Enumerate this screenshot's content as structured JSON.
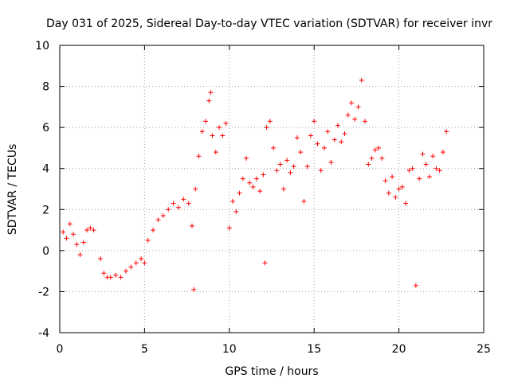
{
  "chart_data": {
    "type": "scatter",
    "title": "Day 031 of 2025, Sidereal Day-to-day VTEC variation (SDTVAR) for receiver invr",
    "xlabel": "GPS time / hours",
    "ylabel": "SDTVAR / TECUs",
    "xlim": [
      0,
      25
    ],
    "ylim": [
      -4,
      10
    ],
    "xticks": [
      0,
      5,
      10,
      15,
      20,
      25
    ],
    "yticks": [
      -4,
      -2,
      0,
      2,
      4,
      6,
      8,
      10
    ],
    "grid": true,
    "marker": "+",
    "color": "#ff0000",
    "series": [
      {
        "name": "SDTVAR",
        "points": [
          [
            0.2,
            0.9
          ],
          [
            0.4,
            0.6
          ],
          [
            0.6,
            1.3
          ],
          [
            0.8,
            0.8
          ],
          [
            1.0,
            0.3
          ],
          [
            1.2,
            -0.2
          ],
          [
            1.4,
            0.4
          ],
          [
            1.6,
            1.0
          ],
          [
            1.8,
            1.1
          ],
          [
            2.0,
            1.0
          ],
          [
            2.4,
            -0.4
          ],
          [
            2.6,
            -1.1
          ],
          [
            2.8,
            -1.3
          ],
          [
            3.0,
            -1.3
          ],
          [
            3.3,
            -1.2
          ],
          [
            3.6,
            -1.3
          ],
          [
            3.9,
            -1.0
          ],
          [
            4.2,
            -0.8
          ],
          [
            4.5,
            -0.6
          ],
          [
            4.8,
            -0.4
          ],
          [
            5.0,
            -0.6
          ],
          [
            5.2,
            0.5
          ],
          [
            5.5,
            1.0
          ],
          [
            5.8,
            1.5
          ],
          [
            6.1,
            1.7
          ],
          [
            6.4,
            2.0
          ],
          [
            6.7,
            2.3
          ],
          [
            7.0,
            2.1
          ],
          [
            7.3,
            2.5
          ],
          [
            7.6,
            2.3
          ],
          [
            7.8,
            1.2
          ],
          [
            7.9,
            -1.9
          ],
          [
            8.0,
            3.0
          ],
          [
            8.2,
            4.6
          ],
          [
            8.4,
            5.8
          ],
          [
            8.6,
            6.3
          ],
          [
            8.8,
            7.3
          ],
          [
            8.9,
            7.7
          ],
          [
            9.0,
            5.6
          ],
          [
            9.2,
            4.8
          ],
          [
            9.4,
            6.0
          ],
          [
            9.6,
            5.6
          ],
          [
            9.8,
            6.2
          ],
          [
            10.0,
            1.1
          ],
          [
            10.2,
            2.4
          ],
          [
            10.4,
            1.9
          ],
          [
            10.6,
            2.8
          ],
          [
            10.8,
            3.5
          ],
          [
            11.0,
            4.5
          ],
          [
            11.2,
            3.3
          ],
          [
            11.4,
            3.1
          ],
          [
            11.6,
            3.5
          ],
          [
            11.8,
            2.9
          ],
          [
            12.0,
            3.7
          ],
          [
            12.1,
            -0.6
          ],
          [
            12.2,
            6.0
          ],
          [
            12.4,
            6.3
          ],
          [
            12.6,
            5.0
          ],
          [
            12.8,
            3.9
          ],
          [
            13.0,
            4.2
          ],
          [
            13.2,
            3.0
          ],
          [
            13.4,
            4.4
          ],
          [
            13.6,
            3.8
          ],
          [
            13.8,
            4.1
          ],
          [
            14.0,
            5.5
          ],
          [
            14.2,
            4.8
          ],
          [
            14.4,
            2.4
          ],
          [
            14.6,
            4.1
          ],
          [
            14.8,
            5.6
          ],
          [
            15.0,
            6.3
          ],
          [
            15.2,
            5.2
          ],
          [
            15.4,
            3.9
          ],
          [
            15.6,
            5.0
          ],
          [
            15.8,
            5.8
          ],
          [
            16.0,
            4.3
          ],
          [
            16.2,
            5.4
          ],
          [
            16.4,
            6.1
          ],
          [
            16.6,
            5.3
          ],
          [
            16.8,
            5.7
          ],
          [
            17.0,
            6.6
          ],
          [
            17.2,
            7.2
          ],
          [
            17.4,
            6.4
          ],
          [
            17.6,
            7.0
          ],
          [
            17.8,
            8.3
          ],
          [
            18.0,
            6.3
          ],
          [
            18.2,
            4.2
          ],
          [
            18.4,
            4.5
          ],
          [
            18.6,
            4.9
          ],
          [
            18.8,
            5.0
          ],
          [
            19.0,
            4.5
          ],
          [
            19.2,
            3.4
          ],
          [
            19.4,
            2.8
          ],
          [
            19.6,
            3.6
          ],
          [
            19.8,
            2.6
          ],
          [
            20.0,
            3.0
          ],
          [
            20.2,
            3.1
          ],
          [
            20.4,
            2.3
          ],
          [
            20.6,
            3.9
          ],
          [
            20.8,
            4.0
          ],
          [
            21.0,
            -1.7
          ],
          [
            21.2,
            3.5
          ],
          [
            21.4,
            4.7
          ],
          [
            21.6,
            4.2
          ],
          [
            21.8,
            3.6
          ],
          [
            22.0,
            4.6
          ],
          [
            22.2,
            4.0
          ],
          [
            22.4,
            3.9
          ],
          [
            22.6,
            4.8
          ],
          [
            22.8,
            5.8
          ]
        ]
      }
    ]
  }
}
